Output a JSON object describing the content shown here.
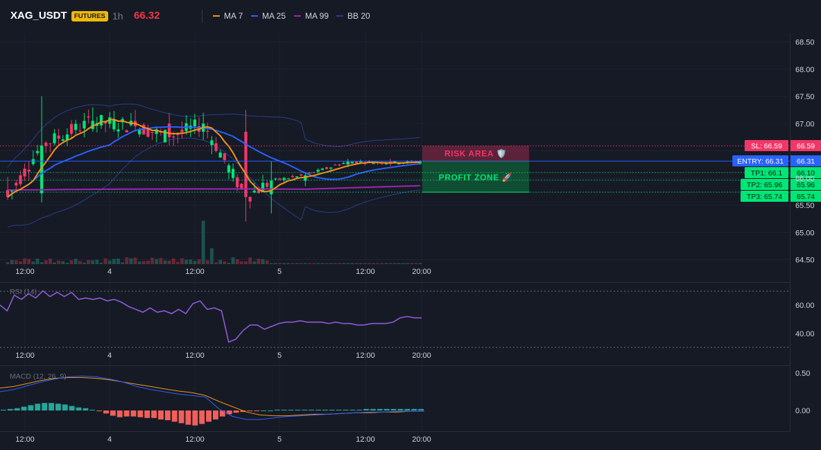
{
  "header": {
    "symbol": "XAG_USDT",
    "badge": "FUTURES",
    "interval": "1h",
    "last_price": "66.32"
  },
  "legend": [
    {
      "label": "MA 7",
      "color": "#f7931a"
    },
    {
      "label": "MA 25",
      "color": "#2962ff"
    },
    {
      "label": "MA 99",
      "color": "#9c27b0"
    },
    {
      "label": "BB 20",
      "color": "#2a3f8a"
    }
  ],
  "zones": {
    "risk": "RISK AREA 🛡️",
    "profit": "PROFIT ZONE 🚀"
  },
  "levels": [
    {
      "key": "sl",
      "tag": "SL: 66.59",
      "axis": "66.59",
      "value": 66.59,
      "color": "#f23668"
    },
    {
      "key": "entry",
      "tag": "ENTRY: 66.31",
      "axis": "66.31",
      "value": 66.31,
      "color": "#2962ff"
    },
    {
      "key": "tp1",
      "tag": "TP1: 66.1",
      "axis": "66.10",
      "value": 66.1,
      "color": "#00e676"
    },
    {
      "key": "tp2",
      "tag": "TP2: 65.96",
      "axis": "65.96",
      "value": 65.96,
      "color": "#00e676"
    },
    {
      "key": "tp3",
      "tag": "TP3: 65.74",
      "axis": "65.74",
      "value": 65.74,
      "color": "#00e676"
    }
  ],
  "chart_data": [
    {
      "type": "candlestick",
      "panel": "price",
      "ylim": [
        64.4,
        68.6
      ],
      "y_ticks": [
        "64.50",
        "65.00",
        "65.50",
        "66.00",
        "66.50",
        "67.00",
        "67.50",
        "68.00",
        "68.50"
      ],
      "x_ticks": [
        "12:00",
        "4",
        "12:00",
        "5",
        "12:00",
        "20:00"
      ],
      "series_names": [
        "MA 7",
        "MA 25",
        "MA 99",
        "BB 20"
      ],
      "ohlc_sample": [
        {
          "o": 65.78,
          "h": 66.02,
          "l": 65.6,
          "c": 65.65
        },
        {
          "o": 65.72,
          "h": 67.5,
          "l": 65.55,
          "c": 66.6
        },
        {
          "o": 66.9,
          "h": 67.3,
          "l": 66.85,
          "c": 67.05
        },
        {
          "o": 67.05,
          "h": 67.25,
          "l": 66.85,
          "c": 66.95
        },
        {
          "o": 67.0,
          "h": 67.2,
          "l": 66.6,
          "c": 66.75
        },
        {
          "o": 66.85,
          "h": 67.2,
          "l": 66.7,
          "c": 67.0
        },
        {
          "o": 66.85,
          "h": 67.25,
          "l": 65.2,
          "c": 65.65
        },
        {
          "o": 65.7,
          "h": 66.3,
          "l": 65.35,
          "c": 65.95
        },
        {
          "o": 65.95,
          "h": 66.1,
          "l": 65.85,
          "c": 66.05
        },
        {
          "o": 66.25,
          "h": 66.35,
          "l": 66.2,
          "c": 66.3
        },
        {
          "o": 66.3,
          "h": 66.35,
          "l": 66.22,
          "c": 66.28
        },
        {
          "o": 66.27,
          "h": 66.33,
          "l": 66.24,
          "c": 66.3
        }
      ]
    },
    {
      "type": "line",
      "panel": "RSI",
      "title": "RSI (14)",
      "y_ticks": [
        "40.00",
        "60.00"
      ],
      "ylim": [
        30,
        72
      ],
      "x_ticks": [
        "12:00",
        "4",
        "12:00",
        "5",
        "12:00",
        "20:00"
      ],
      "values": [
        60,
        56,
        67,
        64,
        68,
        65,
        70,
        66,
        69,
        66,
        69,
        64,
        65,
        64,
        65,
        63,
        64,
        62,
        59,
        57,
        55,
        58,
        55,
        56,
        54,
        57,
        54,
        61,
        63,
        57,
        58,
        56,
        34,
        36,
        42,
        46,
        46,
        43,
        45,
        47,
        48,
        48,
        49,
        48,
        48,
        48,
        47,
        48,
        47,
        47,
        46,
        46,
        47,
        47,
        47,
        48,
        51,
        52,
        51,
        51
      ]
    },
    {
      "type": "bar+line",
      "panel": "MACD",
      "title": "MACD (12, 26, 9)",
      "y_ticks": [
        "0.00",
        "0.50"
      ],
      "ylim": [
        -0.3,
        0.56
      ],
      "x_ticks": [
        "12:00",
        "4",
        "12:00",
        "5",
        "12:00",
        "20:00"
      ],
      "macd": [
        0.25,
        0.28,
        0.33,
        0.38,
        0.42,
        0.45,
        0.46,
        0.45,
        0.42,
        0.38,
        0.32,
        0.28,
        0.25,
        0.22,
        0.2,
        0.18,
        0.02,
        -0.08,
        -0.12,
        -0.12,
        -0.1,
        -0.08,
        -0.07,
        -0.06,
        -0.05,
        -0.04,
        -0.03,
        -0.02,
        -0.02,
        -0.01,
        -0.01,
        -0.01
      ],
      "signal": [
        0.3,
        0.32,
        0.36,
        0.4,
        0.43,
        0.44,
        0.44,
        0.43,
        0.41,
        0.38,
        0.35,
        0.32,
        0.29,
        0.26,
        0.24,
        0.2,
        0.12,
        0.05,
        -0.02,
        -0.06,
        -0.07,
        -0.07,
        -0.06,
        -0.05,
        -0.05,
        -0.04,
        -0.03,
        -0.03,
        -0.02,
        -0.02,
        -0.01,
        -0.01
      ],
      "histogram": [
        0.01,
        0.02,
        0.03,
        0.05,
        0.07,
        0.09,
        0.1,
        0.1,
        0.09,
        0.08,
        0.06,
        0.04,
        0.03,
        0.01,
        -0.01,
        -0.04,
        -0.07,
        -0.09,
        -0.08,
        -0.08,
        -0.09,
        -0.1,
        -0.1,
        -0.12,
        -0.13,
        -0.15,
        -0.17,
        -0.19,
        -0.2,
        -0.18,
        -0.15,
        -0.12,
        -0.08,
        -0.05,
        -0.03,
        -0.02,
        -0.01,
        -0.01,
        0.0,
        0.0,
        0.01,
        0.01,
        0.01,
        0.01,
        0.01,
        0.01,
        0.01,
        0.01,
        0.01,
        0.01,
        0.01,
        0.01,
        0.01,
        0.02,
        0.02,
        0.02,
        0.02,
        0.02,
        0.02,
        0.02,
        0.02,
        0.02
      ]
    }
  ]
}
